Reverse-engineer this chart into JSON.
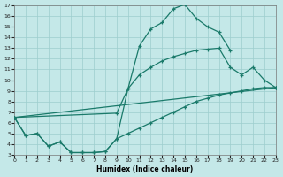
{
  "xlabel": "Humidex (Indice chaleur)",
  "xlim": [
    0,
    23
  ],
  "ylim": [
    3,
    17
  ],
  "xticks": [
    0,
    1,
    2,
    3,
    4,
    5,
    6,
    7,
    8,
    9,
    10,
    11,
    12,
    13,
    14,
    15,
    16,
    17,
    18,
    19,
    20,
    21,
    22,
    23
  ],
  "yticks": [
    3,
    4,
    5,
    6,
    7,
    8,
    9,
    10,
    11,
    12,
    13,
    14,
    15,
    16,
    17
  ],
  "bg_color": "#c4e8e8",
  "grid_color": "#9dcece",
  "line_color": "#1a7a6a",
  "curve1_x": [
    0,
    1,
    2,
    3,
    4,
    5,
    6,
    7,
    8,
    9,
    10,
    11,
    12,
    13,
    14,
    15,
    16,
    17,
    18,
    19
  ],
  "curve1_y": [
    6.5,
    4.8,
    5.0,
    3.8,
    4.2,
    3.2,
    3.2,
    3.2,
    3.3,
    4.5,
    9.2,
    13.2,
    14.8,
    15.4,
    16.7,
    17.1,
    15.8,
    15.0,
    14.5,
    12.8
  ],
  "curve2_x": [
    0,
    9,
    10,
    11,
    12,
    13,
    14,
    15,
    16,
    17,
    18,
    19,
    20,
    21,
    22,
    23
  ],
  "curve2_y": [
    6.5,
    6.9,
    9.2,
    10.5,
    11.2,
    11.8,
    12.2,
    12.5,
    12.8,
    12.9,
    13.0,
    11.2,
    10.5,
    11.2,
    10.0,
    9.3
  ],
  "curve3_x": [
    0,
    23
  ],
  "curve3_y": [
    6.5,
    9.3
  ],
  "curve4_x": [
    0,
    1,
    2,
    3,
    4,
    5,
    6,
    7,
    8,
    9,
    10,
    11,
    12,
    13,
    14,
    15,
    16,
    17,
    18,
    19,
    20,
    21,
    22,
    23
  ],
  "curve4_y": [
    6.5,
    4.8,
    5.0,
    3.8,
    4.2,
    3.2,
    3.2,
    3.2,
    3.3,
    4.5,
    5.0,
    5.5,
    6.0,
    6.5,
    7.0,
    7.5,
    8.0,
    8.3,
    8.6,
    8.8,
    9.0,
    9.2,
    9.3,
    9.3
  ]
}
